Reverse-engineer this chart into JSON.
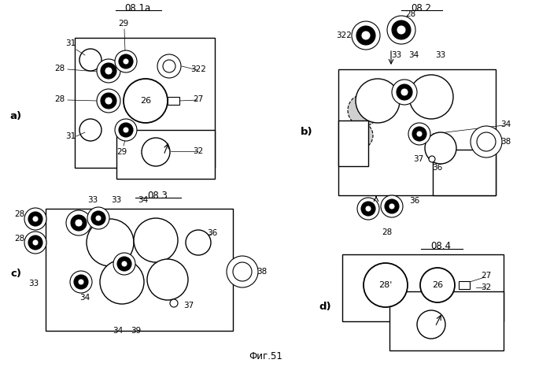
{
  "bg_color": "#ffffff",
  "title_a": "08.1a",
  "title_b": "08.2",
  "title_c": "08.3",
  "title_d": "08.4",
  "caption": "Фиг.51",
  "label_a": "a)",
  "label_b": "b)",
  "label_c": "c)",
  "label_d": "d)"
}
